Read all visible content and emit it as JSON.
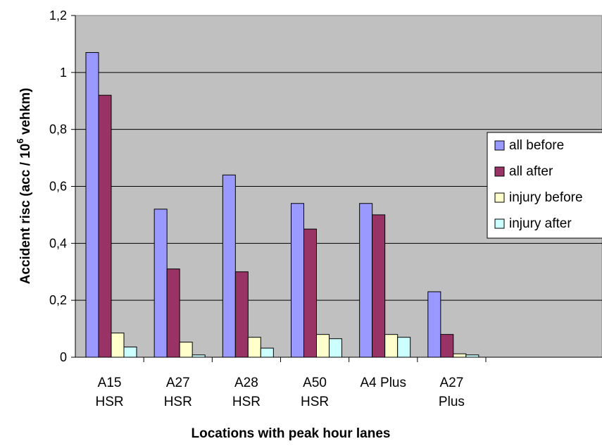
{
  "chart_data": {
    "type": "bar",
    "xlabel": "Locations with peak hour lanes",
    "ylabel": {
      "main": "Accident risc (acc / 10",
      "superscript": "6",
      "tail": " vehkm)"
    },
    "ylim": [
      0,
      1.2
    ],
    "yticks": [
      {
        "value": 0,
        "label": "0"
      },
      {
        "value": 0.2,
        "label": "0,2"
      },
      {
        "value": 0.4,
        "label": "0,4"
      },
      {
        "value": 0.6,
        "label": "0,6"
      },
      {
        "value": 0.8,
        "label": "0,8"
      },
      {
        "value": 1.0,
        "label": "1"
      },
      {
        "value": 1.2,
        "label": "1,2"
      }
    ],
    "grid": true,
    "legend_position": "right",
    "categories": [
      [
        "A15",
        "HSR"
      ],
      [
        "A27",
        "HSR"
      ],
      [
        "A28",
        "HSR"
      ],
      [
        "A50",
        "HSR"
      ],
      [
        "A4 Plus"
      ],
      [
        "A27",
        "Plus"
      ]
    ],
    "series": [
      {
        "name": "all before",
        "color": "#9999ff",
        "values": [
          1.07,
          0.52,
          0.64,
          0.54,
          0.54,
          0.23
        ]
      },
      {
        "name": "all after",
        "color": "#993366",
        "values": [
          0.92,
          0.31,
          0.3,
          0.45,
          0.5,
          0.08
        ]
      },
      {
        "name": "injury before",
        "color": "#ffffcc",
        "values": [
          0.085,
          0.053,
          0.07,
          0.08,
          0.08,
          0.012
        ]
      },
      {
        "name": "injury after",
        "color": "#ccffff",
        "values": [
          0.036,
          0.008,
          0.032,
          0.065,
          0.07,
          0.008
        ]
      }
    ],
    "plot_background": "#c0c0c0"
  }
}
